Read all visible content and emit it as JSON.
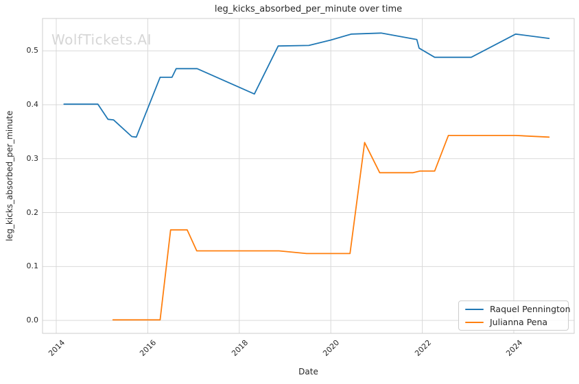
{
  "watermark": "WolfTickets.AI",
  "chart_data": {
    "type": "line",
    "title": "leg_kicks_absorbed_per_minute over time",
    "xlabel": "Date",
    "ylabel": "leg_kicks_absorbed_per_minute",
    "xlim": [
      2013.7,
      2025.32
    ],
    "ylim": [
      -0.024,
      0.56
    ],
    "x_ticks": [
      "2014",
      "2016",
      "2018",
      "2020",
      "2022",
      "2024"
    ],
    "y_ticks": [
      "0.0",
      "0.1",
      "0.2",
      "0.3",
      "0.4",
      "0.5"
    ],
    "grid": true,
    "legend_position": "lower right",
    "colors": {
      "grid": "#d9d9d9",
      "spine": "#cccccc",
      "text": "#262626",
      "watermark": "#d6d6d6",
      "blue": "#1f77b4",
      "orange": "#ff7f0e"
    },
    "series": [
      {
        "name": "Raquel Pennington",
        "color": "#1f77b4",
        "points": [
          [
            2014.17,
            0.401
          ],
          [
            2014.91,
            0.401
          ],
          [
            2015.13,
            0.373
          ],
          [
            2015.25,
            0.372
          ],
          [
            2015.65,
            0.341
          ],
          [
            2015.75,
            0.34
          ],
          [
            2016.27,
            0.451
          ],
          [
            2016.53,
            0.451
          ],
          [
            2016.62,
            0.467
          ],
          [
            2017.08,
            0.467
          ],
          [
            2018.33,
            0.42
          ],
          [
            2018.85,
            0.509
          ],
          [
            2019.52,
            0.51
          ],
          [
            2020.0,
            0.52
          ],
          [
            2020.45,
            0.531
          ],
          [
            2021.1,
            0.533
          ],
          [
            2021.88,
            0.521
          ],
          [
            2021.93,
            0.505
          ],
          [
            2022.27,
            0.488
          ],
          [
            2023.07,
            0.488
          ],
          [
            2024.04,
            0.531
          ],
          [
            2024.77,
            0.523
          ]
        ]
      },
      {
        "name": "Julianna Pena",
        "color": "#ff7f0e",
        "points": [
          [
            2015.24,
            0.001
          ],
          [
            2016.27,
            0.001
          ],
          [
            2016.5,
            0.168
          ],
          [
            2016.86,
            0.168
          ],
          [
            2017.07,
            0.129
          ],
          [
            2018.87,
            0.129
          ],
          [
            2019.47,
            0.124
          ],
          [
            2020.42,
            0.124
          ],
          [
            2020.74,
            0.33
          ],
          [
            2021.07,
            0.274
          ],
          [
            2021.8,
            0.274
          ],
          [
            2021.95,
            0.277
          ],
          [
            2022.27,
            0.277
          ],
          [
            2022.57,
            0.343
          ],
          [
            2024.04,
            0.343
          ],
          [
            2024.77,
            0.34
          ]
        ]
      }
    ]
  }
}
